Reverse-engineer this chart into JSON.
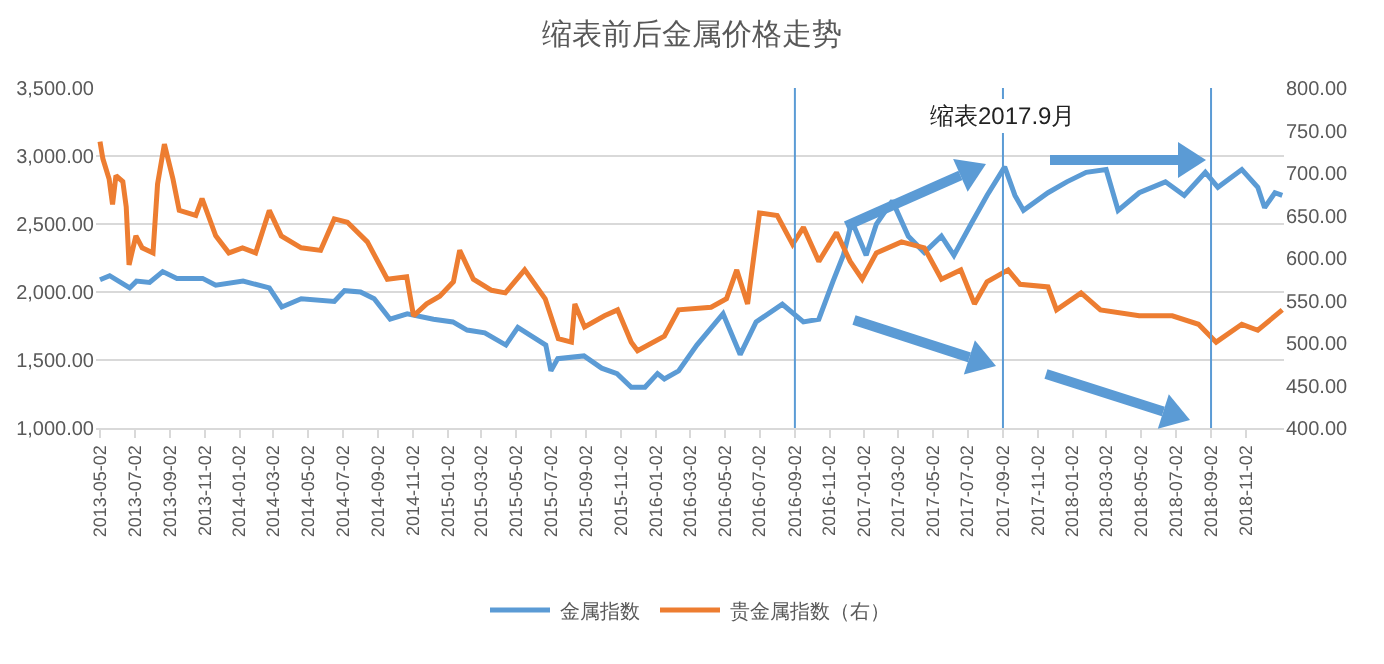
{
  "chart_data": {
    "type": "line",
    "title": "缩表前后金属价格走势",
    "xlim": [
      "2013-04-25",
      "2019-01-08"
    ],
    "xticks": [
      "2013-05-02",
      "2013-07-02",
      "2013-09-02",
      "2013-11-02",
      "2014-01-02",
      "2014-03-02",
      "2014-05-02",
      "2014-07-02",
      "2014-09-02",
      "2014-11-02",
      "2015-01-02",
      "2015-03-02",
      "2015-05-02",
      "2015-07-02",
      "2015-09-02",
      "2015-11-02",
      "2016-01-02",
      "2016-03-02",
      "2016-05-02",
      "2016-07-02",
      "2016-09-02",
      "2016-11-02",
      "2017-01-02",
      "2017-03-02",
      "2017-05-02",
      "2017-07-02",
      "2017-09-02",
      "2017-11-02",
      "2018-01-02",
      "2018-03-02",
      "2018-05-02",
      "2018-07-02",
      "2018-09-02",
      "2018-11-02"
    ],
    "ylim": [
      1000,
      3500
    ],
    "yticks": [
      {
        "value": 1000,
        "label": "1,000.00"
      },
      {
        "value": 1500,
        "label": "1,500.00"
      },
      {
        "value": 2000,
        "label": "2,000.00"
      },
      {
        "value": 2500,
        "label": "2,500.00"
      },
      {
        "value": 3000,
        "label": "3,000.00"
      },
      {
        "value": 3500,
        "label": "3,500.00"
      }
    ],
    "y2lim": [
      400,
      800
    ],
    "y2ticks": [
      {
        "value": 400,
        "label": "400.00"
      },
      {
        "value": 450,
        "label": "450.00"
      },
      {
        "value": 500,
        "label": "500.00"
      },
      {
        "value": 550,
        "label": "550.00"
      },
      {
        "value": 600,
        "label": "600.00"
      },
      {
        "value": 650,
        "label": "650.00"
      },
      {
        "value": 700,
        "label": "700.00"
      },
      {
        "value": 750,
        "label": "750.00"
      },
      {
        "value": 800,
        "label": "800.00"
      }
    ],
    "grid": "y",
    "legend": "bottom",
    "series": [
      {
        "name": "金属指数",
        "color": "#5b9bd5",
        "x": [
          "2013-05-02",
          "2013-05-19",
          "2013-06-23",
          "2013-07-05",
          "2013-07-28",
          "2013-08-20",
          "2013-09-14",
          "2013-10-29",
          "2013-11-21",
          "2014-01-08",
          "2014-02-23",
          "2014-03-17",
          "2014-04-20",
          "2014-06-17",
          "2014-07-05",
          "2014-08-02",
          "2014-08-26",
          "2014-09-23",
          "2014-10-23",
          "2014-12-08",
          "2015-01-11",
          "2015-02-05",
          "2015-03-08",
          "2015-04-14",
          "2015-05-05",
          "2015-06-23",
          "2015-07-02",
          "2015-07-14",
          "2015-08-29",
          "2015-09-29",
          "2015-10-26",
          "2015-11-20",
          "2015-12-14",
          "2016-01-05",
          "2016-01-17",
          "2016-02-11",
          "2016-03-14",
          "2016-04-29",
          "2016-05-29",
          "2016-06-26",
          "2016-08-11",
          "2016-09-17",
          "2016-10-14",
          "2016-11-08",
          "2016-11-26",
          "2016-12-11",
          "2017-01-05",
          "2017-01-23",
          "2017-02-20",
          "2017-03-20",
          "2017-04-17",
          "2017-05-17",
          "2017-06-08",
          "2017-07-08",
          "2017-08-05",
          "2017-09-05",
          "2017-09-23",
          "2017-10-08",
          "2017-11-20",
          "2017-12-23",
          "2018-01-26",
          "2018-03-02",
          "2018-03-23",
          "2018-04-29",
          "2018-06-14",
          "2018-07-17",
          "2018-08-23",
          "2018-09-14",
          "2018-10-26",
          "2018-11-23",
          "2018-12-05",
          "2018-12-23",
          "2019-01-05"
        ],
        "values": [
          2090,
          2120,
          2030,
          2080,
          2070,
          2150,
          2100,
          2100,
          2050,
          2080,
          2030,
          1890,
          1950,
          1930,
          2010,
          2000,
          1950,
          1800,
          1840,
          1800,
          1780,
          1720,
          1700,
          1610,
          1740,
          1610,
          1420,
          1510,
          1530,
          1440,
          1400,
          1300,
          1300,
          1400,
          1360,
          1420,
          1610,
          1840,
          1540,
          1780,
          1910,
          1780,
          1800,
          2080,
          2270,
          2520,
          2270,
          2500,
          2670,
          2410,
          2290,
          2410,
          2270,
          2500,
          2710,
          2920,
          2710,
          2600,
          2730,
          2810,
          2880,
          2900,
          2600,
          2730,
          2810,
          2710,
          2880,
          2770,
          2900,
          2770,
          2620,
          2730,
          2710
        ]
      },
      {
        "name": "贵金属指数（右）",
        "color": "#ed7d31",
        "axis": "y2",
        "x": [
          "2013-05-02",
          "2013-05-07",
          "2013-05-18",
          "2013-05-24",
          "2013-05-30",
          "2013-06-11",
          "2013-06-17",
          "2013-06-22",
          "2013-07-04",
          "2013-07-15",
          "2013-08-03",
          "2013-08-11",
          "2013-08-23",
          "2013-09-07",
          "2013-09-18",
          "2013-10-17",
          "2013-10-28",
          "2013-11-21",
          "2013-12-14",
          "2014-01-07",
          "2014-01-30",
          "2014-02-23",
          "2014-03-16",
          "2014-04-20",
          "2014-05-24",
          "2014-06-17",
          "2014-07-10",
          "2014-08-14",
          "2014-09-18",
          "2014-10-22",
          "2014-11-03",
          "2014-11-26",
          "2014-12-19",
          "2015-01-12",
          "2015-01-23",
          "2015-02-16",
          "2015-03-20",
          "2015-04-13",
          "2015-05-17",
          "2015-06-22",
          "2015-07-15",
          "2015-08-07",
          "2015-08-13",
          "2015-08-30",
          "2015-10-04",
          "2015-10-27",
          "2015-11-20",
          "2015-12-01",
          "2016-01-17",
          "2016-02-11",
          "2016-04-08",
          "2016-05-05",
          "2016-05-23",
          "2016-06-11",
          "2016-07-02",
          "2016-08-02",
          "2016-08-29",
          "2016-09-17",
          "2016-10-14",
          "2016-11-14",
          "2016-12-08",
          "2016-12-29",
          "2017-01-23",
          "2017-03-08",
          "2017-04-17",
          "2017-05-17",
          "2017-06-20",
          "2017-07-14",
          "2017-08-05",
          "2017-09-11",
          "2017-10-02",
          "2017-11-20",
          "2017-12-05",
          "2018-01-17",
          "2018-02-20",
          "2018-04-29",
          "2018-06-26",
          "2018-08-11",
          "2018-09-11",
          "2018-10-26",
          "2018-11-23",
          "2019-01-05"
        ],
        "values": [
          737,
          717,
          693,
          663,
          697,
          690,
          660,
          592,
          626,
          612,
          606,
          687,
          734,
          693,
          656,
          650,
          670,
          626,
          606,
          612,
          606,
          656,
          626,
          612,
          609,
          646,
          642,
          619,
          575,
          578,
          532,
          546,
          555,
          572,
          609,
          575,
          562,
          559,
          586,
          552,
          505,
          501,
          546,
          519,
          532,
          539,
          501,
          491,
          508,
          539,
          542,
          552,
          586,
          546,
          653,
          650,
          616,
          636,
          596,
          630,
          596,
          575,
          606,
          619,
          612,
          575,
          586,
          546,
          572,
          586,
          569,
          566,
          539,
          559,
          539,
          532,
          532,
          522,
          501,
          522,
          515,
          539
        ]
      }
    ],
    "ref_lines": [
      {
        "axis": "x",
        "value": "2016-09-02",
        "label": null,
        "color": "#5b9bd5"
      },
      {
        "axis": "x",
        "value": "2017-09-02",
        "label": "缩表2017.9月",
        "color": "#5b9bd5"
      },
      {
        "axis": "x",
        "value": "2018-09-02",
        "label": null,
        "color": "#5b9bd5"
      }
    ]
  }
}
